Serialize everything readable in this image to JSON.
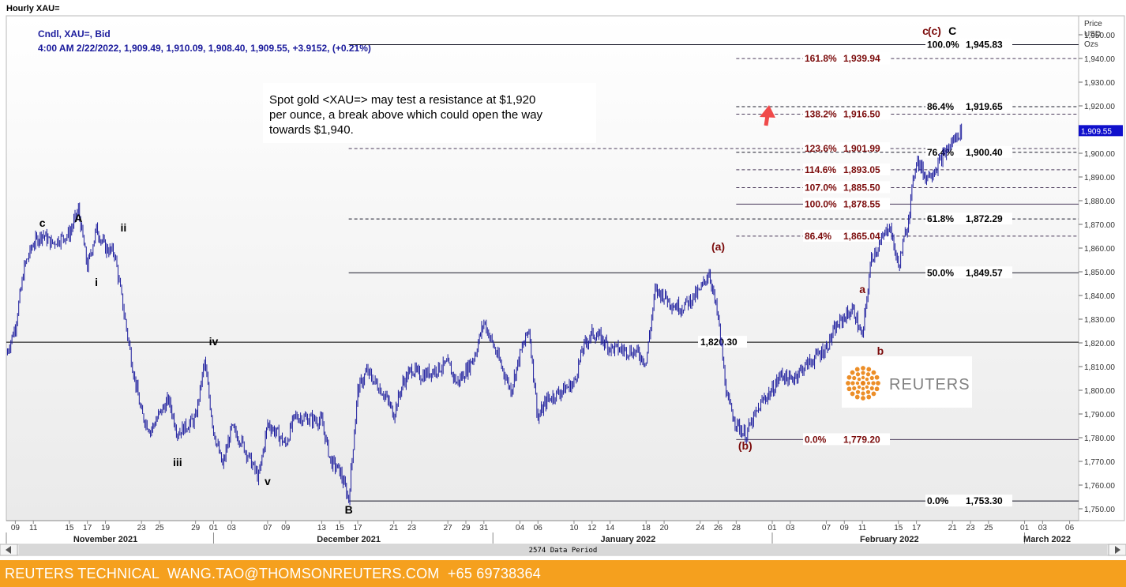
{
  "window_title": "Hourly XAU=",
  "legend": {
    "line1": "Cndl, XAU=, Bid",
    "line2": "4:00 AM 2/22/2022, 1,909.49, 1,910.09, 1,908.40, 1,909.55, +3.9152, (+0.21%)"
  },
  "annotation": {
    "lines": [
      "Spot gold <XAU=> may test a resistance at $1,920",
      "per ounce, a break above which could open the way",
      "towards $1,940."
    ]
  },
  "logo_text": "REUTERS",
  "footer_text": "REUTERS TECHNICAL  WANG.TAO@THOMSONREUTERS.COM  +65 69738364",
  "data_period_label": "2574 Data Period",
  "colors": {
    "candle": "#1a1a9c",
    "fib_black": "#000000",
    "fib_red": "#7b0b0b",
    "footer": "#f5a01e",
    "arrow": "#f04a4a",
    "last_price_box": "#1010cc"
  },
  "chart_data": {
    "type": "candlestick",
    "series": [
      {
        "name": "Cndl, XAU=, Bid"
      }
    ],
    "y_axis": {
      "title": [
        "Price",
        "USD",
        "Ozs"
      ],
      "range": [
        1745,
        1958
      ],
      "ticks": [
        1750,
        1760,
        1770,
        1780,
        1790,
        1800,
        1810,
        1820,
        1830,
        1840,
        1850,
        1860,
        1870,
        1880,
        1890,
        1900,
        1910,
        1920,
        1930,
        1940,
        1950
      ],
      "tick_labels": [
        "1,750.00",
        "1,760.00",
        "1,770.00",
        "1,780.00",
        "1,790.00",
        "1,800.00",
        "1,810.00",
        "1,820.00",
        "1,830.00",
        "1,840.00",
        "1,850.00",
        "1,860.00",
        "1,870.00",
        "1,880.00",
        "1,890.00",
        "1,900.00",
        "1,910.00",
        "1,920.00",
        "1,930.00",
        "1,940.00",
        "1,950.00"
      ],
      "last_price_label": "1,909.55",
      "last_price": 1909.55
    },
    "x_axis": {
      "range": [
        "2021-11-08",
        "2022-03-07"
      ],
      "day_ticks": [
        {
          "date": "2021-11-09",
          "label": "09"
        },
        {
          "date": "2021-11-11",
          "label": "11"
        },
        {
          "date": "2021-11-15",
          "label": "15"
        },
        {
          "date": "2021-11-17",
          "label": "17"
        },
        {
          "date": "2021-11-19",
          "label": "19"
        },
        {
          "date": "2021-11-23",
          "label": "23"
        },
        {
          "date": "2021-11-25",
          "label": "25"
        },
        {
          "date": "2021-11-29",
          "label": "29"
        },
        {
          "date": "2021-12-01",
          "label": "01"
        },
        {
          "date": "2021-12-03",
          "label": "03"
        },
        {
          "date": "2021-12-07",
          "label": "07"
        },
        {
          "date": "2021-12-09",
          "label": "09"
        },
        {
          "date": "2021-12-13",
          "label": "13"
        },
        {
          "date": "2021-12-15",
          "label": "15"
        },
        {
          "date": "2021-12-17",
          "label": "17"
        },
        {
          "date": "2021-12-21",
          "label": "21"
        },
        {
          "date": "2021-12-23",
          "label": "23"
        },
        {
          "date": "2021-12-27",
          "label": "27"
        },
        {
          "date": "2021-12-29",
          "label": "29"
        },
        {
          "date": "2021-12-31",
          "label": "31"
        },
        {
          "date": "2022-01-04",
          "label": "04"
        },
        {
          "date": "2022-01-06",
          "label": "06"
        },
        {
          "date": "2022-01-10",
          "label": "10"
        },
        {
          "date": "2022-01-12",
          "label": "12"
        },
        {
          "date": "2022-01-14",
          "label": "14"
        },
        {
          "date": "2022-01-18",
          "label": "18"
        },
        {
          "date": "2022-01-20",
          "label": "20"
        },
        {
          "date": "2022-01-24",
          "label": "24"
        },
        {
          "date": "2022-01-26",
          "label": "26"
        },
        {
          "date": "2022-01-28",
          "label": "28"
        },
        {
          "date": "2022-02-01",
          "label": "01"
        },
        {
          "date": "2022-02-03",
          "label": "03"
        },
        {
          "date": "2022-02-07",
          "label": "07"
        },
        {
          "date": "2022-02-09",
          "label": "09"
        },
        {
          "date": "2022-02-11",
          "label": "11"
        },
        {
          "date": "2022-02-15",
          "label": "15"
        },
        {
          "date": "2022-02-17",
          "label": "17"
        },
        {
          "date": "2022-02-21",
          "label": "21"
        },
        {
          "date": "2022-02-23",
          "label": "23"
        },
        {
          "date": "2022-02-25",
          "label": "25"
        },
        {
          "date": "2022-03-01",
          "label": "01"
        },
        {
          "date": "2022-03-03",
          "label": "03"
        },
        {
          "date": "2022-03-06",
          "label": "06"
        }
      ],
      "months": [
        {
          "label": "November 2021",
          "mid": "2021-11-19",
          "start": "2021-11-01"
        },
        {
          "label": "December 2021",
          "mid": "2021-12-16",
          "start": "2021-12-01"
        },
        {
          "label": "January 2022",
          "mid": "2022-01-16",
          "start": "2022-01-01"
        },
        {
          "label": "February 2022",
          "mid": "2022-02-14",
          "start": "2022-02-01"
        },
        {
          "label": "March 2022",
          "mid": "2022-03-05",
          "start": "2022-03-01"
        }
      ]
    },
    "price_path": [
      [
        "2021-11-08",
        1815
      ],
      [
        "2021-11-09",
        1827
      ],
      [
        "2021-11-10",
        1852
      ],
      [
        "2021-11-11",
        1862
      ],
      [
        "2021-11-12",
        1866
      ],
      [
        "2021-11-13",
        1862
      ],
      [
        "2021-11-15",
        1866
      ],
      [
        "2021-11-16",
        1876
      ],
      [
        "2021-11-17",
        1852
      ],
      [
        "2021-11-18",
        1868
      ],
      [
        "2021-11-19",
        1860
      ],
      [
        "2021-11-20",
        1858
      ],
      [
        "2021-11-22",
        1810
      ],
      [
        "2021-11-23",
        1790
      ],
      [
        "2021-11-24",
        1783
      ],
      [
        "2021-11-25",
        1790
      ],
      [
        "2021-11-26",
        1796
      ],
      [
        "2021-11-27",
        1782
      ],
      [
        "2021-11-29",
        1788
      ],
      [
        "2021-11-30",
        1812
      ],
      [
        "2021-12-01",
        1783
      ],
      [
        "2021-12-02",
        1768
      ],
      [
        "2021-12-03",
        1784
      ],
      [
        "2021-12-04",
        1779
      ],
      [
        "2021-12-06",
        1763
      ],
      [
        "2021-12-07",
        1786
      ],
      [
        "2021-12-08",
        1782
      ],
      [
        "2021-12-09",
        1777
      ],
      [
        "2021-12-10",
        1789
      ],
      [
        "2021-12-13",
        1787
      ],
      [
        "2021-12-14",
        1770
      ],
      [
        "2021-12-15",
        1766
      ],
      [
        "2021-12-16",
        1754
      ],
      [
        "2021-12-17",
        1800
      ],
      [
        "2021-12-18",
        1808
      ],
      [
        "2021-12-20",
        1798
      ],
      [
        "2021-12-21",
        1790
      ],
      [
        "2021-12-22",
        1803
      ],
      [
        "2021-12-23",
        1809
      ],
      [
        "2021-12-24",
        1806
      ],
      [
        "2021-12-27",
        1811
      ],
      [
        "2021-12-28",
        1803
      ],
      [
        "2021-12-29",
        1808
      ],
      [
        "2021-12-30",
        1815
      ],
      [
        "2021-12-31",
        1829
      ],
      [
        "2022-01-03",
        1800
      ],
      [
        "2022-01-04",
        1815
      ],
      [
        "2022-01-05",
        1826
      ],
      [
        "2022-01-06",
        1788
      ],
      [
        "2022-01-07",
        1796
      ],
      [
        "2022-01-10",
        1803
      ],
      [
        "2022-01-11",
        1818
      ],
      [
        "2022-01-12",
        1824
      ],
      [
        "2022-01-13",
        1822
      ],
      [
        "2022-01-14",
        1818
      ],
      [
        "2022-01-17",
        1816
      ],
      [
        "2022-01-18",
        1812
      ],
      [
        "2022-01-19",
        1842
      ],
      [
        "2022-01-20",
        1840
      ],
      [
        "2022-01-21",
        1836
      ],
      [
        "2022-01-22",
        1835
      ],
      [
        "2022-01-24",
        1842
      ],
      [
        "2022-01-25",
        1850
      ],
      [
        "2022-01-26",
        1830
      ],
      [
        "2022-01-27",
        1796
      ],
      [
        "2022-01-28",
        1786
      ],
      [
        "2022-01-29",
        1781
      ],
      [
        "2022-01-31",
        1796
      ],
      [
        "2022-02-01",
        1800
      ],
      [
        "2022-02-02",
        1807
      ],
      [
        "2022-02-03",
        1804
      ],
      [
        "2022-02-04",
        1808
      ],
      [
        "2022-02-07",
        1818
      ],
      [
        "2022-02-08",
        1826
      ],
      [
        "2022-02-09",
        1831
      ],
      [
        "2022-02-10",
        1834
      ],
      [
        "2022-02-11",
        1822
      ],
      [
        "2022-02-12",
        1856
      ],
      [
        "2022-02-13",
        1862
      ],
      [
        "2022-02-14",
        1870
      ],
      [
        "2022-02-15",
        1852
      ],
      [
        "2022-02-16",
        1870
      ],
      [
        "2022-02-17",
        1898
      ],
      [
        "2022-02-18",
        1890
      ],
      [
        "2022-02-19",
        1893
      ],
      [
        "2022-02-21",
        1905
      ],
      [
        "2022-02-22",
        1909.55
      ]
    ],
    "fib_levels": [
      {
        "label": "100.0%",
        "value_label": "1,945.83",
        "value": 1945.83,
        "style": "solid",
        "color": "black",
        "x_start": "2021-12-16"
      },
      {
        "label": "161.8%",
        "value_label": "1,939.94",
        "value": 1939.94,
        "style": "dashed",
        "color": "red",
        "x_start": "2022-01-28"
      },
      {
        "label": "86.4%",
        "value_label": "1,919.65",
        "value": 1919.65,
        "style": "dashed",
        "color": "black",
        "x_start": "2022-01-28"
      },
      {
        "label": "138.2%",
        "value_label": "1,916.50",
        "value": 1916.5,
        "style": "dashed",
        "color": "red",
        "x_start": "2022-01-28"
      },
      {
        "label": "123.6%",
        "value_label": "1,901.99",
        "value": 1901.99,
        "style": "dashed",
        "color": "red",
        "x_start": "2021-12-16"
      },
      {
        "label": "76.4%",
        "value_label": "1,900.40",
        "value": 1900.4,
        "style": "dashed",
        "color": "black",
        "x_start": "2022-01-28"
      },
      {
        "label": "114.6%",
        "value_label": "1,893.05",
        "value": 1893.05,
        "style": "dashed",
        "color": "red",
        "x_start": "2022-01-28"
      },
      {
        "label": "107.0%",
        "value_label": "1,885.50",
        "value": 1885.5,
        "style": "dashed",
        "color": "red",
        "x_start": "2022-01-28"
      },
      {
        "label": "100.0%",
        "value_label": "1,878.55",
        "value": 1878.55,
        "style": "solid",
        "color": "red",
        "x_start": "2022-01-28"
      },
      {
        "label": "61.8%",
        "value_label": "1,872.29",
        "value": 1872.29,
        "style": "dashed",
        "color": "black",
        "x_start": "2021-12-16"
      },
      {
        "label": "86.4%",
        "value_label": "1,865.04",
        "value": 1865.04,
        "style": "dashed",
        "color": "red",
        "x_start": "2022-01-28"
      },
      {
        "label": "50.0%",
        "value_label": "1,849.57",
        "value": 1849.57,
        "style": "solid",
        "color": "black",
        "x_start": "2021-12-16"
      },
      {
        "label": "0.0%",
        "value_label": "1,779.20",
        "value": 1779.2,
        "style": "solid",
        "color": "red",
        "x_start": "2022-01-28"
      },
      {
        "label": "0.0%",
        "value_label": "1,753.30",
        "value": 1753.3,
        "style": "solid",
        "color": "black",
        "x_start": "2021-12-16"
      }
    ],
    "horizontal_line": {
      "value": 1820.3,
      "label": "1,820.30"
    },
    "wave_labels": [
      {
        "text": "c",
        "x": "2021-11-12",
        "y": 1869,
        "color": "black"
      },
      {
        "text": "A",
        "x": "2021-11-16",
        "y": 1871,
        "color": "black"
      },
      {
        "text": "ii",
        "x": "2021-11-21",
        "y": 1867,
        "color": "black"
      },
      {
        "text": "i",
        "x": "2021-11-18",
        "y": 1844,
        "color": "black"
      },
      {
        "text": "iv",
        "x": "2021-12-01",
        "y": 1819,
        "color": "black"
      },
      {
        "text": "iii",
        "x": "2021-11-27",
        "y": 1768,
        "color": "black"
      },
      {
        "text": "v",
        "x": "2021-12-07",
        "y": 1760,
        "color": "black"
      },
      {
        "text": "B",
        "x": "2021-12-16",
        "y": 1748,
        "color": "black"
      },
      {
        "text": "(a)",
        "x": "2022-01-26",
        "y": 1859,
        "color": "red"
      },
      {
        "text": "(b)",
        "x": "2022-01-29",
        "y": 1775,
        "color": "red"
      },
      {
        "text": "a",
        "x": "2022-02-11",
        "y": 1841,
        "color": "red"
      },
      {
        "text": "b",
        "x": "2022-02-13",
        "y": 1815,
        "color": "red"
      },
      {
        "text": "c",
        "x": "2022-02-18",
        "y": 1950,
        "color": "red"
      },
      {
        "text": "(c)",
        "x": "2022-02-19",
        "y": 1950,
        "color": "red"
      },
      {
        "text": "C",
        "x": "2022-02-21",
        "y": 1950,
        "color": "black"
      }
    ],
    "grid": false,
    "legend_position": "top-left"
  }
}
